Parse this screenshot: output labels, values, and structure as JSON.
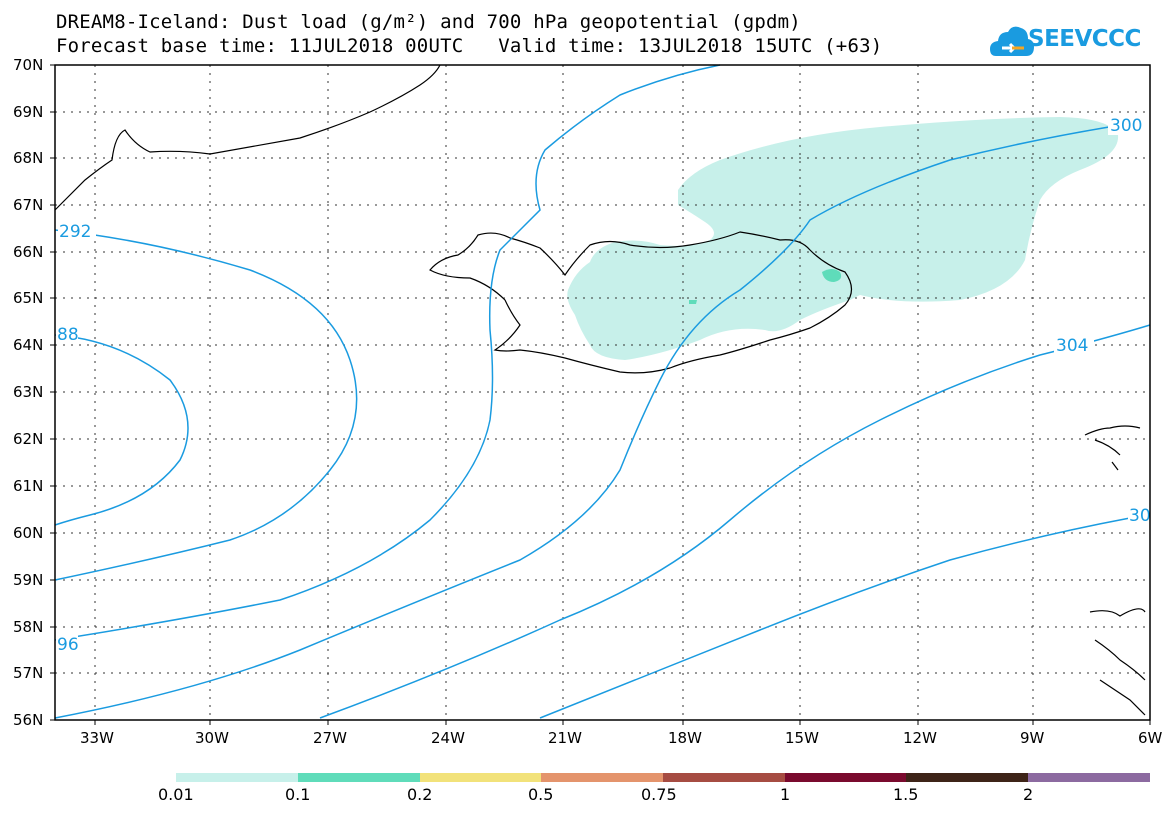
{
  "title": {
    "line1": "DREAM8-Iceland: Dust load (g/m²) and 700 hPa geopotential (gpdm)",
    "line2": "Forecast base time: 11JUL2018 00UTC   Valid time: 13JUL2018 15UTC (+63)"
  },
  "logo": {
    "text": "SEEVCCC",
    "icon": "cloud-logo-icon"
  },
  "axes": {
    "lat_labels": [
      "70N",
      "69N",
      "68N",
      "67N",
      "66N",
      "65N",
      "64N",
      "63N",
      "62N",
      "61N",
      "60N",
      "59N",
      "58N",
      "57N",
      "56N"
    ],
    "lon_labels": [
      "33W",
      "30W",
      "27W",
      "24W",
      "21W",
      "18W",
      "15W",
      "12W",
      "9W",
      "6W"
    ]
  },
  "contours": {
    "color": "#1a9be0",
    "labels": [
      "292",
      "88",
      "96",
      "300",
      "304",
      "30"
    ]
  },
  "colorbar": {
    "colors": [
      "#c7f0ea",
      "#5fdcba",
      "#f2e27a",
      "#e4946c",
      "#a64c42",
      "#7a0a2e",
      "#3e2418",
      "#8c6aa0"
    ],
    "labels": [
      "0.01",
      "0.1",
      "0.2",
      "0.5",
      "0.75",
      "1",
      "1.5",
      "2"
    ]
  },
  "colors": {
    "dust_light": "#c7f0ea",
    "dust_mid": "#5fdcba",
    "contour": "#1a9be0"
  }
}
